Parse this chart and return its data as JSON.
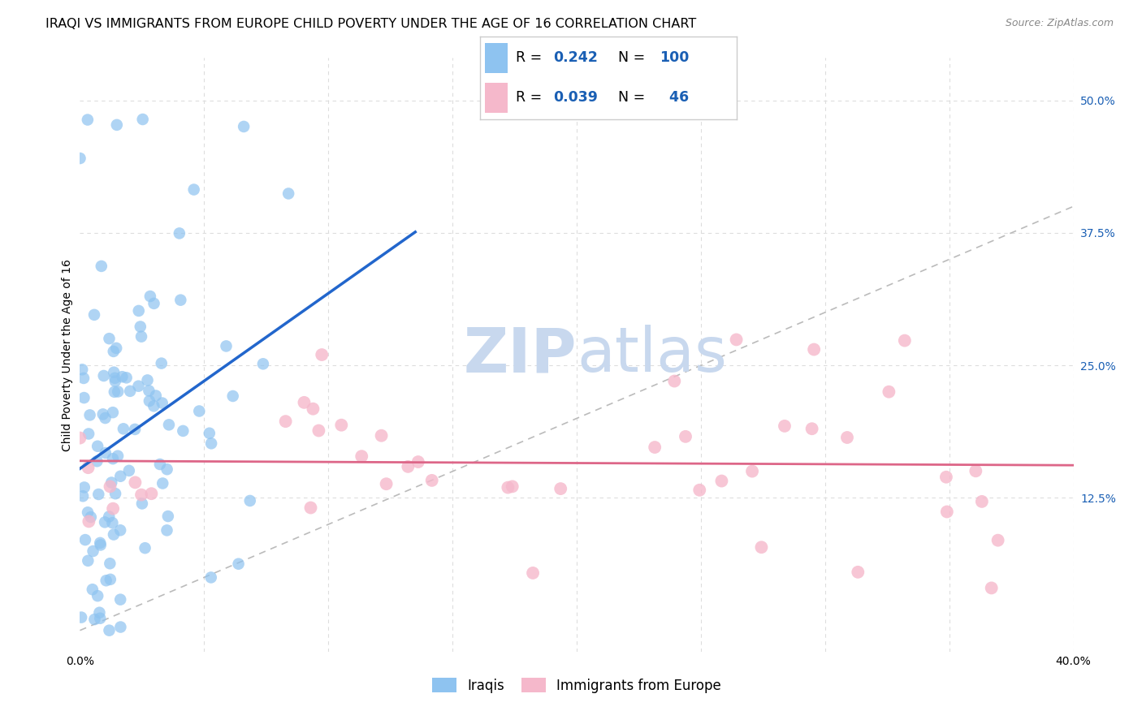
{
  "title": "IRAQI VS IMMIGRANTS FROM EUROPE CHILD POVERTY UNDER THE AGE OF 16 CORRELATION CHART",
  "source": "Source: ZipAtlas.com",
  "ylabel": "Child Poverty Under the Age of 16",
  "xlim": [
    0.0,
    0.4
  ],
  "ylim": [
    -0.02,
    0.54
  ],
  "yticks": [
    0.0,
    0.125,
    0.25,
    0.375,
    0.5
  ],
  "ytick_labels": [
    "",
    "12.5%",
    "25.0%",
    "37.5%",
    "50.0%"
  ],
  "xtick_positions": [
    0.0,
    0.05,
    0.1,
    0.15,
    0.2,
    0.25,
    0.3,
    0.35,
    0.4
  ],
  "xtick_labels": [
    "0.0%",
    "",
    "",
    "",
    "",
    "",
    "",
    "",
    "40.0%"
  ],
  "iraqis_color": "#8ec3f0",
  "europeans_color": "#f5b8cb",
  "iraqis_line_color": "#2266cc",
  "europeans_line_color": "#dd6688",
  "diagonal_color": "#bbbbbb",
  "R_iraqis": 0.242,
  "N_iraqis": 100,
  "R_europeans": 0.039,
  "N_europeans": 46,
  "background_color": "#ffffff",
  "grid_color": "#dddddd",
  "title_fontsize": 11.5,
  "axis_label_fontsize": 10,
  "tick_fontsize": 10,
  "legend_fontsize": 13,
  "watermark_zip_color": "#c8d8ee",
  "watermark_atlas_color": "#c8d8ee",
  "watermark_fontsize": 55
}
